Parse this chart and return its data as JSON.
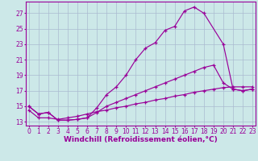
{
  "curve1_x": [
    0,
    1,
    2,
    3,
    4,
    5,
    6,
    7,
    8,
    9,
    10,
    11,
    12,
    13,
    14,
    15,
    16,
    17,
    18,
    20,
    21,
    22,
    23
  ],
  "curve1_y": [
    15.0,
    14.0,
    14.2,
    13.2,
    13.2,
    13.3,
    13.5,
    14.8,
    16.5,
    17.5,
    19.0,
    21.0,
    22.5,
    23.2,
    24.8,
    25.3,
    27.3,
    27.8,
    27.0,
    23.0,
    17.2,
    17.0,
    17.2
  ],
  "curve2_x": [
    0,
    1,
    2,
    3,
    4,
    5,
    6,
    7,
    8,
    9,
    10,
    11,
    12,
    13,
    14,
    15,
    16,
    17,
    18,
    19,
    20,
    21,
    22,
    23
  ],
  "curve2_y": [
    15.0,
    14.0,
    14.2,
    13.2,
    13.2,
    13.3,
    13.5,
    14.2,
    15.0,
    15.5,
    16.0,
    16.5,
    17.0,
    17.5,
    18.0,
    18.5,
    19.0,
    19.5,
    20.0,
    20.3,
    18.0,
    17.2,
    17.0,
    17.2
  ],
  "curve3_x": [
    0,
    1,
    2,
    3,
    4,
    5,
    6,
    7,
    8,
    9,
    10,
    11,
    12,
    13,
    14,
    15,
    16,
    17,
    18,
    19,
    20,
    21,
    22,
    23
  ],
  "curve3_y": [
    14.5,
    13.5,
    13.5,
    13.3,
    13.5,
    13.7,
    14.0,
    14.3,
    14.5,
    14.8,
    15.0,
    15.3,
    15.5,
    15.8,
    16.0,
    16.3,
    16.5,
    16.8,
    17.0,
    17.2,
    17.4,
    17.5,
    17.5,
    17.5
  ],
  "color": "#990099",
  "bg_color": "#cce8e8",
  "grid_color": "#aabbd0",
  "ylim": [
    12.5,
    28.5
  ],
  "xlim": [
    -0.3,
    23.3
  ],
  "yticks": [
    13,
    15,
    17,
    19,
    21,
    23,
    25,
    27
  ],
  "xticks": [
    0,
    1,
    2,
    3,
    4,
    5,
    6,
    7,
    8,
    9,
    10,
    11,
    12,
    13,
    14,
    15,
    16,
    17,
    18,
    19,
    20,
    21,
    22,
    23
  ],
  "xlabel": "Windchill (Refroidissement éolien,°C)",
  "tick_fontsize": 5.5,
  "label_fontsize": 6.5
}
